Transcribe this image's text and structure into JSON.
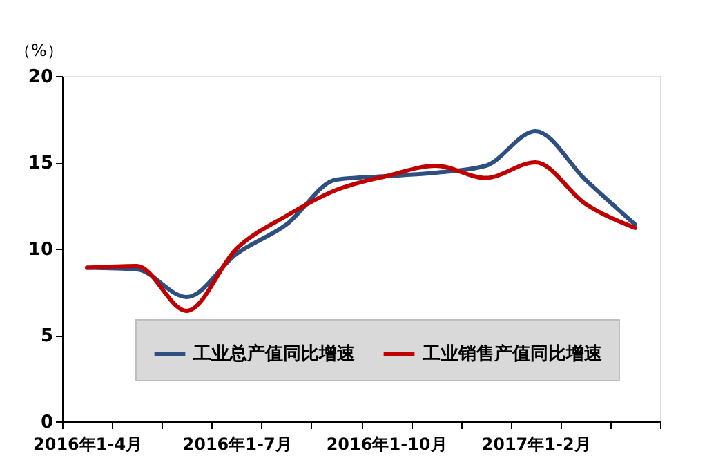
{
  "chart_data": {
    "type": "line",
    "ylabel": "（%）",
    "categories": [
      "2016年1-4月",
      null,
      null,
      "2016年1-7月",
      null,
      null,
      "2016年1-10月",
      null,
      null,
      "2017年1-2月",
      null,
      null
    ],
    "series": [
      {
        "name": "工业总产值同比增速",
        "color": "#2e4f80",
        "values": [
          8.9,
          8.8,
          7.2,
          9.7,
          11.4,
          14.0,
          14.2,
          14.4,
          14.8,
          16.8,
          14.0,
          11.4
        ]
      },
      {
        "name": "工业销售产值同比增速",
        "color": "#c00000",
        "values": [
          8.9,
          9.0,
          6.4,
          10.0,
          11.9,
          13.4,
          14.2,
          14.8,
          14.1,
          15.0,
          12.6,
          11.2
        ]
      }
    ],
    "ylim": [
      0,
      20
    ],
    "yticks": [
      0,
      5,
      10,
      15,
      20
    ],
    "grid": false,
    "legend": "bottom right",
    "marker": "none",
    "line_style": "solid"
  }
}
